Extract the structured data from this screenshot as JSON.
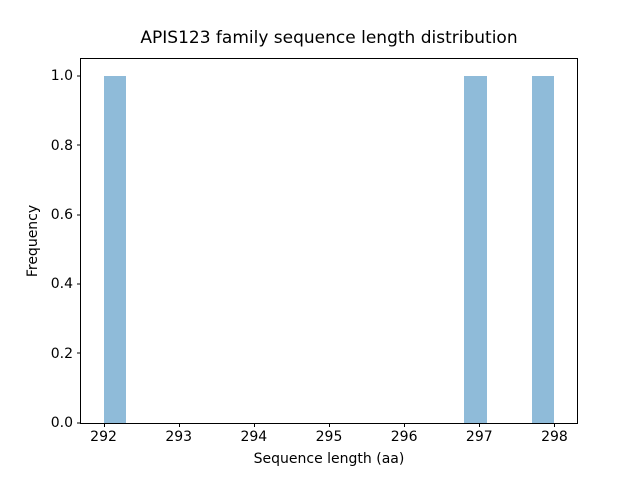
{
  "chart_data": {
    "type": "bar",
    "subtype": "histogram",
    "title": "APIS123 family sequence length distribution",
    "xlabel": "Sequence length (aa)",
    "ylabel": "Frequency",
    "xlim": [
      291.7,
      298.3
    ],
    "ylim": [
      0,
      1.05
    ],
    "x_ticks": [
      292,
      293,
      294,
      295,
      296,
      297,
      298
    ],
    "y_ticks": [
      "0.0",
      "0.2",
      "0.4",
      "0.6",
      "0.8",
      "1.0"
    ],
    "grid": false,
    "legend": null,
    "bar_color": "#8fbbd9",
    "axis_color": "#000000",
    "background_color": "#ffffff",
    "bin_width": 0.3,
    "bars": [
      {
        "x_start": 292.0,
        "x_end": 292.3,
        "frequency": 1.0
      },
      {
        "x_start": 296.8,
        "x_end": 297.1,
        "frequency": 1.0
      },
      {
        "x_start": 297.7,
        "x_end": 298.0,
        "frequency": 1.0
      }
    ]
  }
}
